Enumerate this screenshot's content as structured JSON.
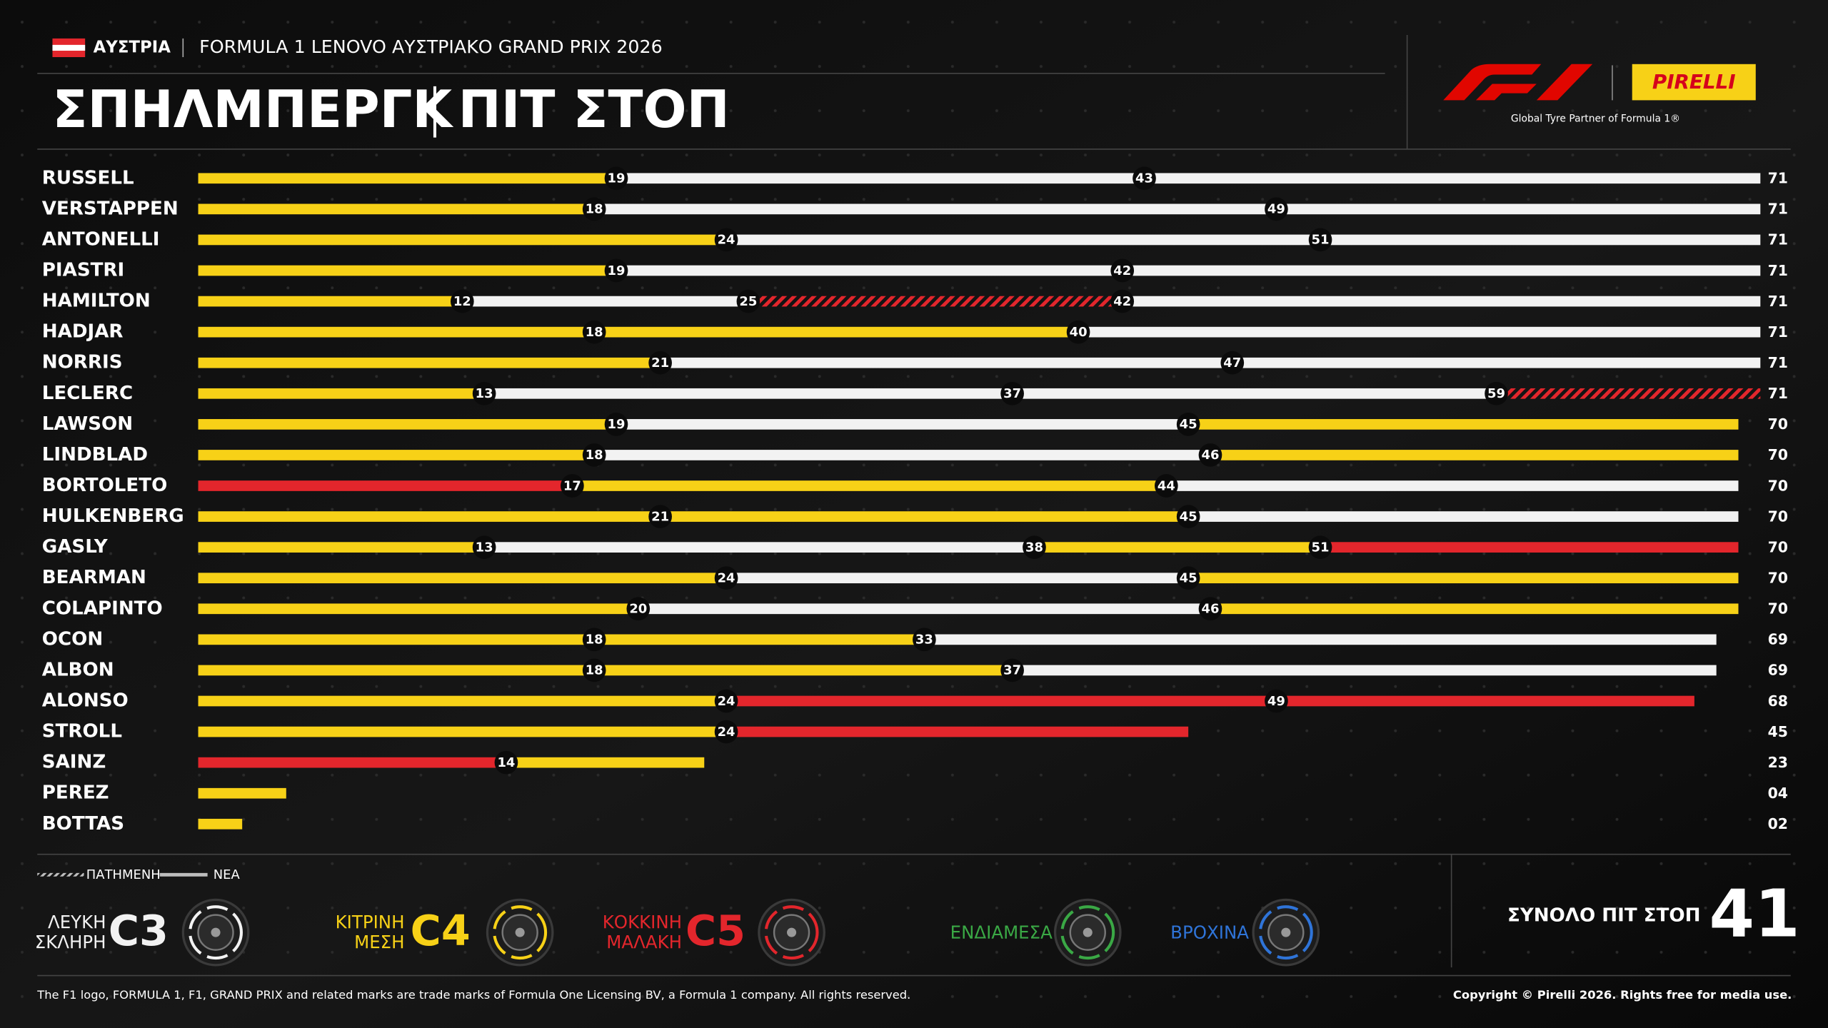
{
  "header": {
    "country": "ΑΥΣΤΡΙΑ",
    "event": "FORMULA 1 LENOVO ΑΥΣΤΡΙΑΚΟ GRAND PRIX 2026",
    "brand": "PIRELLI",
    "tagline": "Global Tyre Partner of Formula 1®"
  },
  "chart_data": {
    "type": "stint",
    "title": "ΣΠΗΛΜΠΕΡΓΚ",
    "subtitle": "ΠΙΤ ΣΤΟΠ",
    "xlim": [
      0,
      71
    ],
    "drivers": [
      {
        "name": "RUSSELL",
        "stops": [
          19,
          43
        ],
        "compounds": [
          "C4",
          "C3",
          "C3"
        ],
        "used": [
          false,
          false,
          false
        ],
        "total": 71
      },
      {
        "name": "VERSTAPPEN",
        "stops": [
          18,
          49
        ],
        "compounds": [
          "C4",
          "C3",
          "C3"
        ],
        "used": [
          false,
          false,
          false
        ],
        "total": 71
      },
      {
        "name": "ANTONELLI",
        "stops": [
          24,
          51
        ],
        "compounds": [
          "C4",
          "C3",
          "C3"
        ],
        "used": [
          false,
          false,
          false
        ],
        "total": 71
      },
      {
        "name": "PIASTRI",
        "stops": [
          19,
          42
        ],
        "compounds": [
          "C4",
          "C3",
          "C3"
        ],
        "used": [
          false,
          false,
          false
        ],
        "total": 71
      },
      {
        "name": "HAMILTON",
        "stops": [
          12,
          25,
          42
        ],
        "compounds": [
          "C4",
          "C3",
          "C5",
          "C3"
        ],
        "used": [
          false,
          false,
          true,
          false
        ],
        "total": 71
      },
      {
        "name": "HADJAR",
        "stops": [
          18,
          40
        ],
        "compounds": [
          "C4",
          "C4",
          "C3"
        ],
        "used": [
          false,
          false,
          false
        ],
        "total": 71
      },
      {
        "name": "NORRIS",
        "stops": [
          21,
          47
        ],
        "compounds": [
          "C4",
          "C3",
          "C3"
        ],
        "used": [
          false,
          false,
          false
        ],
        "total": 71
      },
      {
        "name": "LECLERC",
        "stops": [
          13,
          37,
          59
        ],
        "compounds": [
          "C4",
          "C3",
          "C3",
          "C5"
        ],
        "used": [
          false,
          false,
          false,
          true
        ],
        "total": 71
      },
      {
        "name": "LAWSON",
        "stops": [
          19,
          45
        ],
        "compounds": [
          "C4",
          "C3",
          "C4"
        ],
        "used": [
          false,
          false,
          false
        ],
        "total": 70
      },
      {
        "name": "LINDBLAD",
        "stops": [
          18,
          46
        ],
        "compounds": [
          "C4",
          "C3",
          "C4"
        ],
        "used": [
          false,
          false,
          false
        ],
        "total": 70
      },
      {
        "name": "BORTOLETO",
        "stops": [
          17,
          44
        ],
        "compounds": [
          "C5",
          "C4",
          "C3"
        ],
        "used": [
          false,
          false,
          false
        ],
        "total": 70
      },
      {
        "name": "HULKENBERG",
        "stops": [
          21,
          45
        ],
        "compounds": [
          "C4",
          "C4",
          "C3"
        ],
        "used": [
          false,
          false,
          false
        ],
        "total": 70
      },
      {
        "name": "GASLY",
        "stops": [
          13,
          38,
          51
        ],
        "compounds": [
          "C4",
          "C3",
          "C4",
          "C5"
        ],
        "used": [
          false,
          false,
          false,
          false
        ],
        "total": 70
      },
      {
        "name": "BEARMAN",
        "stops": [
          24,
          45
        ],
        "compounds": [
          "C4",
          "C3",
          "C4"
        ],
        "used": [
          false,
          false,
          false
        ],
        "total": 70
      },
      {
        "name": "COLAPINTO",
        "stops": [
          20,
          46
        ],
        "compounds": [
          "C4",
          "C3",
          "C4"
        ],
        "used": [
          false,
          false,
          false
        ],
        "total": 70
      },
      {
        "name": "OCON",
        "stops": [
          18,
          33
        ],
        "compounds": [
          "C4",
          "C4",
          "C3"
        ],
        "used": [
          false,
          false,
          false
        ],
        "total": 69
      },
      {
        "name": "ALBON",
        "stops": [
          18,
          37
        ],
        "compounds": [
          "C4",
          "C4",
          "C3"
        ],
        "used": [
          false,
          false,
          false
        ],
        "total": 69
      },
      {
        "name": "ALONSO",
        "stops": [
          24,
          49
        ],
        "compounds": [
          "C4",
          "C5",
          "C5"
        ],
        "used": [
          false,
          false,
          false
        ],
        "total": 68
      },
      {
        "name": "STROLL",
        "stops": [
          24
        ],
        "compounds": [
          "C4",
          "C5"
        ],
        "used": [
          false,
          false
        ],
        "total": 45
      },
      {
        "name": "SAINZ",
        "stops": [
          14
        ],
        "compounds": [
          "C5",
          "C4"
        ],
        "used": [
          false,
          false
        ],
        "total": 23
      },
      {
        "name": "PEREZ",
        "stops": [],
        "compounds": [
          "C4"
        ],
        "used": [
          false
        ],
        "total": 4,
        "total_label": "04"
      },
      {
        "name": "BOTTAS",
        "stops": [],
        "compounds": [
          "C4"
        ],
        "used": [
          false
        ],
        "total": 2,
        "total_label": "02"
      }
    ],
    "legend": {
      "used_label": "ΠΑΤΗΜΕΝΗ",
      "new_label": "ΝΕΑ",
      "compounds": [
        {
          "code": "C3",
          "lines": [
            "ΛΕΥΚΗ",
            "ΣΚΛΗΡΗ"
          ],
          "color": "#f2f2f2"
        },
        {
          "code": "C4",
          "lines": [
            "ΚΙΤΡΙΝΗ",
            "ΜΕΣΗ"
          ],
          "color": "#f7d117"
        },
        {
          "code": "C5",
          "lines": [
            "ΚΟΚΚΙΝΗ",
            "ΜΑΛΑΚΗ"
          ],
          "color": "#e3262c"
        }
      ],
      "others": [
        {
          "label": "ΕΝΔΙΑΜΕΣΑ",
          "color": "#3aa845"
        },
        {
          "label": "ΒΡΟΧΙΝΑ",
          "color": "#2f74d8"
        }
      ]
    },
    "total_stops_label": "ΣΥΝΟΛΟ ΠΙΤ ΣΤΟΠ",
    "total_stops": 41
  },
  "footer": {
    "left": "The F1 logo, FORMULA 1, F1, GRAND PRIX and related marks are trade marks of Formula One Licensing BV, a Formula 1 company. All rights reserved.",
    "right": "Copyright © Pirelli 2026. Rights free for media use."
  }
}
